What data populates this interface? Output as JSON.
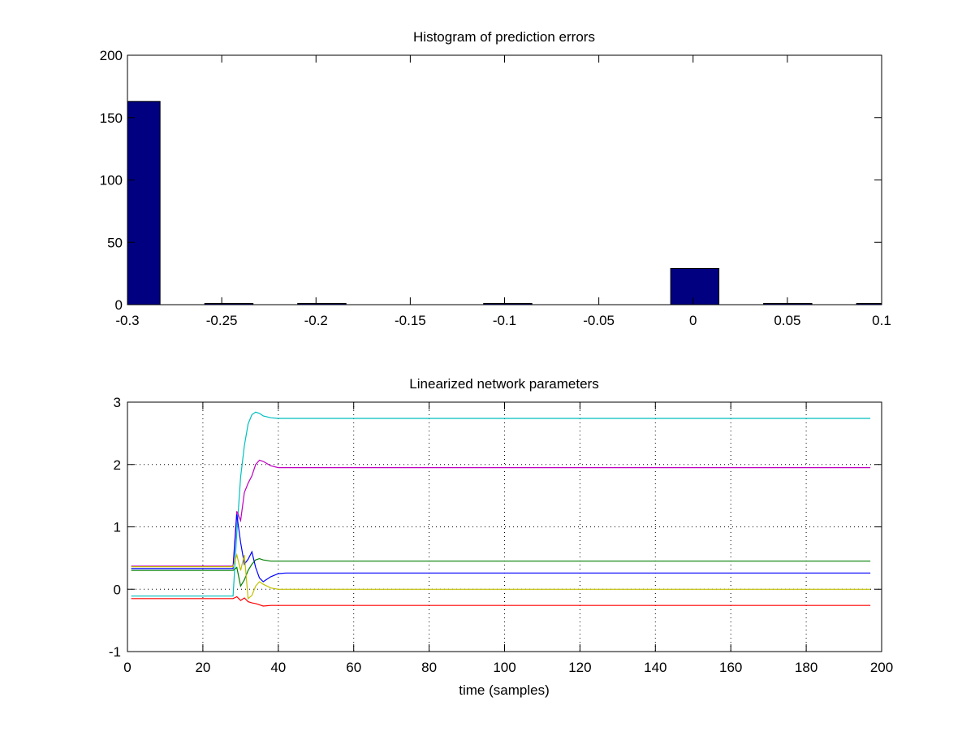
{
  "chart_data": [
    {
      "type": "bar",
      "title": "Histogram of prediction errors",
      "xlabel": "",
      "ylabel": "",
      "xlim": [
        -0.3,
        0.1
      ],
      "ylim": [
        0,
        200
      ],
      "grid": false,
      "xticks": [
        "-0.3",
        "-0.25",
        "-0.2",
        "-0.15",
        "-0.1",
        "-0.05",
        "0",
        "0.05",
        "0.1"
      ],
      "xtick_values": [
        -0.3,
        -0.25,
        -0.2,
        -0.15,
        -0.1,
        -0.05,
        0,
        0.05,
        0.1
      ],
      "yticks": [
        "0",
        "50",
        "100",
        "150",
        "200"
      ],
      "ytick_values": [
        0,
        50,
        100,
        150,
        200
      ],
      "bar_centers": [
        -0.2955,
        -0.2462,
        -0.1969,
        -0.1476,
        -0.0983,
        -0.049,
        0.0009,
        0.0502,
        0.0995
      ],
      "bar_width": 0.0256,
      "values": [
        163,
        1,
        1,
        0,
        1,
        0,
        29,
        1,
        1
      ],
      "color": "#000080"
    },
    {
      "type": "line",
      "title": "Linearized network parameters",
      "xlabel": "time (samples)",
      "ylabel": "",
      "xlim": [
        0,
        200
      ],
      "ylim": [
        -1,
        3
      ],
      "grid": true,
      "xticks": [
        "0",
        "20",
        "40",
        "60",
        "80",
        "100",
        "120",
        "140",
        "160",
        "180",
        "200"
      ],
      "xtick_values": [
        0,
        20,
        40,
        60,
        80,
        100,
        120,
        140,
        160,
        180,
        200
      ],
      "yticks": [
        "-1",
        "0",
        "1",
        "2",
        "3"
      ],
      "ytick_values": [
        -1,
        0,
        1,
        2,
        3
      ],
      "series": [
        {
          "color": "#00BFBF",
          "x": [
            1,
            28,
            29,
            30,
            31,
            32,
            33,
            34,
            35,
            36,
            38,
            40,
            42,
            197
          ],
          "y": [
            -0.11,
            -0.11,
            0.9,
            1.8,
            2.3,
            2.65,
            2.8,
            2.84,
            2.82,
            2.78,
            2.75,
            2.74,
            2.74,
            2.74
          ]
        },
        {
          "color": "#BF00BF",
          "x": [
            1,
            28,
            29,
            30,
            31,
            32,
            33,
            34,
            35,
            36,
            38,
            40,
            42,
            197
          ],
          "y": [
            0.37,
            0.37,
            1.25,
            1.1,
            1.55,
            1.7,
            1.82,
            2.0,
            2.07,
            2.05,
            1.98,
            1.95,
            1.95,
            1.95
          ]
        },
        {
          "color": "#007F00",
          "x": [
            1,
            28,
            29,
            30,
            31,
            32,
            33,
            34,
            35,
            36,
            38,
            40,
            42,
            197
          ],
          "y": [
            0.3,
            0.3,
            0.35,
            0.05,
            0.15,
            0.3,
            0.4,
            0.47,
            0.49,
            0.47,
            0.45,
            0.45,
            0.45,
            0.45
          ]
        },
        {
          "color": "#0000FF",
          "x": [
            1,
            28,
            29,
            30,
            31,
            32,
            33,
            34,
            35,
            36,
            38,
            40,
            42,
            44,
            197
          ],
          "y": [
            0.33,
            0.33,
            1.2,
            0.75,
            0.4,
            0.48,
            0.6,
            0.35,
            0.18,
            0.12,
            0.2,
            0.25,
            0.26,
            0.26,
            0.26
          ]
        },
        {
          "color": "#BFBF00",
          "x": [
            1,
            28,
            29,
            30,
            31,
            32,
            33,
            34,
            35,
            36,
            38,
            40,
            42,
            197
          ],
          "y": [
            0.36,
            0.36,
            0.55,
            0.3,
            0.55,
            -0.15,
            -0.1,
            0.05,
            0.12,
            0.08,
            0.02,
            0.0,
            0.0,
            0.0
          ]
        },
        {
          "color": "#FF0000",
          "x": [
            1,
            28,
            29,
            30,
            31,
            32,
            33,
            34,
            35,
            36,
            38,
            40,
            42,
            197
          ],
          "y": [
            -0.15,
            -0.15,
            -0.12,
            -0.18,
            -0.14,
            -0.2,
            -0.22,
            -0.23,
            -0.25,
            -0.27,
            -0.26,
            -0.26,
            -0.26,
            -0.26
          ]
        }
      ]
    }
  ]
}
